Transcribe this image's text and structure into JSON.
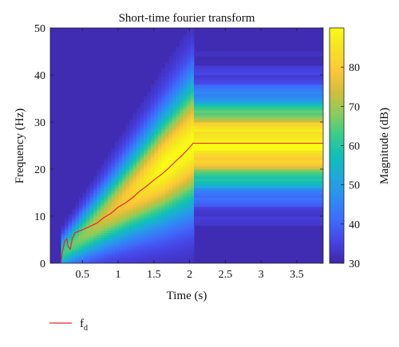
{
  "chart_data": {
    "type": "heatmap",
    "title": "Short-time fourier transform",
    "xlabel": "Time (s)",
    "ylabel": "Frequency (Hz)",
    "colorbar_label": "Magnitude (dB)",
    "xlim": [
      0.05,
      3.87
    ],
    "ylim": [
      0,
      50
    ],
    "clim": [
      30,
      90
    ],
    "x_ticks": [
      0.5,
      1,
      1.5,
      2,
      2.5,
      3,
      3.5
    ],
    "x_tick_labels": [
      "0.5",
      "1",
      "1.5",
      "2",
      "2.5",
      "3",
      "3.5"
    ],
    "y_ticks": [
      0,
      10,
      20,
      30,
      40,
      50
    ],
    "y_tick_labels": [
      "0",
      "10",
      "20",
      "30",
      "40",
      "50"
    ],
    "colorbar_ticks": [
      30,
      40,
      50,
      60,
      70,
      80
    ],
    "colorbar_tick_labels": [
      "30",
      "40",
      "50",
      "60",
      "70",
      "80"
    ],
    "colormap": [
      "#3e26a8",
      "#4743e4",
      "#3e6bfc",
      "#2d8cf2",
      "#1fa8db",
      "#10bfb9",
      "#39cc8a",
      "#8ccc5c",
      "#d1be3b",
      "#fcc838",
      "#f5e223",
      "#f9fb15"
    ],
    "signal_model": {
      "description_visible": "chirp rising until ~2 s then constant",
      "f_start": 2,
      "f_end": 25.5,
      "t_start": 0.2,
      "t_knee": 2.05,
      "t_end": 3.87,
      "background_db": 31
    },
    "series": [
      {
        "name": "f_d",
        "color": "#e8262b",
        "x": [
          0.2,
          0.22,
          0.25,
          0.28,
          0.3,
          0.33,
          0.36,
          0.4,
          0.5,
          0.6,
          0.7,
          0.8,
          0.9,
          1.0,
          1.1,
          1.2,
          1.3,
          1.4,
          1.5,
          1.6,
          1.7,
          1.8,
          1.9,
          2.0,
          2.05,
          2.5,
          3.0,
          3.5,
          3.87
        ],
        "y": [
          0.3,
          2.5,
          4.6,
          5.2,
          3.6,
          3.0,
          5.4,
          6.5,
          7.1,
          7.8,
          8.5,
          9.7,
          10.6,
          11.9,
          12.8,
          13.9,
          15.3,
          16.4,
          17.7,
          18.8,
          20.1,
          21.6,
          23.0,
          24.6,
          25.5,
          25.5,
          25.5,
          25.5,
          25.5
        ]
      }
    ],
    "legend": {
      "position": "bottom-left",
      "label_main": "f",
      "label_sub": "d"
    }
  }
}
